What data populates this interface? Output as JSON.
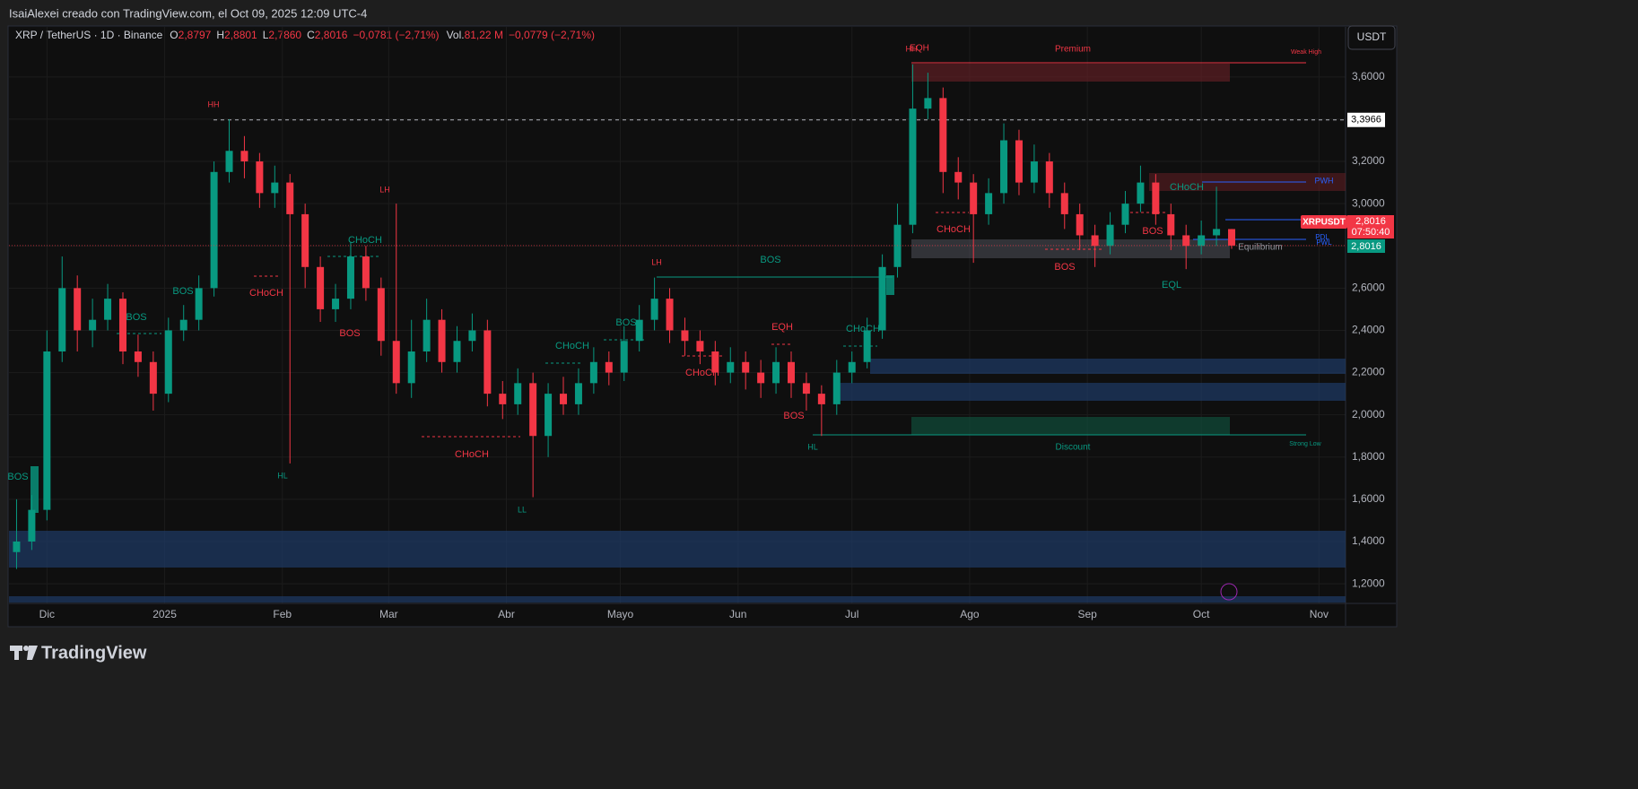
{
  "header": {
    "caption": "IsaiAlexei creado con TradingView.com, el Oct 09, 2025 12:09 UTC-4",
    "currency_button": "USDT",
    "brand": "TradingView"
  },
  "chart_data": {
    "type": "candlestick",
    "symbol": "XRP / TetherUS · 1D · Binance",
    "ohlc": [
      {
        "key": "O",
        "value": 2.8797,
        "label": "2,8797"
      },
      {
        "key": "H",
        "value": 2.8801,
        "label": "2,8801"
      },
      {
        "key": "L",
        "value": 2.786,
        "label": "2,7860"
      },
      {
        "key": "C",
        "value": 2.8016,
        "label": "2,8016"
      }
    ],
    "change": "−0,0781 (−2,71%)",
    "volume_key": "Vol.",
    "volume": "81,22 M",
    "volume_change": "−0,0779 (−2,71%)",
    "up_color": "#089981",
    "down_color": "#f23645",
    "grid": true,
    "x": [
      -8,
      -4,
      0,
      4,
      8,
      12,
      16,
      20,
      24,
      28,
      32,
      36,
      40,
      44,
      48,
      52,
      56,
      60,
      64,
      68,
      72,
      76,
      80,
      84,
      88,
      92,
      96,
      100,
      104,
      108,
      112,
      116,
      120,
      124,
      128,
      132,
      136,
      140,
      144,
      148,
      152,
      156,
      160,
      164,
      168,
      172,
      176,
      180,
      184,
      188,
      192,
      196,
      200,
      204,
      208,
      212,
      216,
      220,
      224,
      228,
      232,
      236,
      240,
      244,
      248,
      252,
      256,
      260,
      264,
      268,
      272,
      276,
      280,
      284,
      288,
      292,
      296,
      300,
      304,
      308,
      312
    ],
    "open": [
      1.35,
      1.4,
      1.55,
      2.3,
      2.6,
      2.4,
      2.45,
      2.55,
      2.3,
      2.25,
      2.1,
      2.4,
      2.45,
      2.6,
      3.15,
      3.25,
      3.2,
      3.05,
      3.1,
      2.95,
      2.7,
      2.5,
      2.55,
      2.75,
      2.6,
      2.35,
      2.15,
      2.3,
      2.45,
      2.25,
      2.35,
      2.4,
      2.1,
      2.05,
      2.15,
      1.9,
      2.1,
      2.05,
      2.15,
      2.25,
      2.2,
      2.35,
      2.45,
      2.55,
      2.4,
      2.35,
      2.3,
      2.2,
      2.25,
      2.2,
      2.15,
      2.25,
      2.15,
      2.1,
      2.05,
      2.2,
      2.25,
      2.4,
      2.7,
      2.9,
      3.45,
      3.5,
      3.15,
      3.1,
      2.95,
      3.05,
      3.3,
      3.1,
      3.2,
      3.05,
      2.95,
      2.85,
      2.8,
      2.9,
      3.0,
      3.1,
      2.95,
      2.85,
      2.8,
      2.85,
      2.8797
    ],
    "high": [
      1.6,
      1.62,
      2.4,
      2.75,
      2.66,
      2.55,
      2.62,
      2.58,
      2.38,
      2.3,
      2.46,
      2.52,
      2.66,
      3.2,
      3.4,
      3.32,
      3.24,
      3.18,
      3.14,
      3.0,
      2.75,
      2.62,
      2.82,
      2.8,
      2.65,
      3.0,
      2.45,
      2.55,
      2.5,
      2.42,
      2.48,
      2.45,
      2.16,
      2.22,
      2.2,
      2.15,
      2.18,
      2.22,
      2.32,
      2.3,
      2.42,
      2.52,
      2.65,
      2.6,
      2.46,
      2.4,
      2.35,
      2.32,
      2.3,
      2.26,
      2.32,
      2.3,
      2.2,
      2.14,
      2.26,
      2.3,
      2.46,
      2.76,
      3.0,
      3.66,
      3.62,
      3.55,
      3.22,
      3.14,
      3.12,
      3.38,
      3.35,
      3.28,
      3.24,
      3.1,
      3.0,
      2.9,
      2.96,
      3.06,
      3.18,
      3.14,
      3.0,
      2.9,
      2.92,
      3.08,
      2.8801
    ],
    "low": [
      1.27,
      1.36,
      1.5,
      2.25,
      2.3,
      2.32,
      2.4,
      2.24,
      2.18,
      2.02,
      2.06,
      2.35,
      2.4,
      2.56,
      3.1,
      3.12,
      2.98,
      2.98,
      1.77,
      2.6,
      2.44,
      2.44,
      2.5,
      2.54,
      2.28,
      2.1,
      2.08,
      2.25,
      2.2,
      2.2,
      2.3,
      2.04,
      1.98,
      2.0,
      1.61,
      1.8,
      2.0,
      2.0,
      2.1,
      2.14,
      2.16,
      2.3,
      2.4,
      2.34,
      2.28,
      2.24,
      2.14,
      2.15,
      2.12,
      2.08,
      2.1,
      2.08,
      2.02,
      1.9,
      2.0,
      2.15,
      2.22,
      2.36,
      2.65,
      2.86,
      3.4,
      3.05,
      3.02,
      2.72,
      2.9,
      3.0,
      3.04,
      3.05,
      2.98,
      2.88,
      2.78,
      2.7,
      2.76,
      2.86,
      2.96,
      2.9,
      2.78,
      2.69,
      2.76,
      2.8,
      2.786
    ],
    "close": [
      1.4,
      1.55,
      2.3,
      2.6,
      2.4,
      2.45,
      2.55,
      2.3,
      2.25,
      2.1,
      2.4,
      2.45,
      2.6,
      3.15,
      3.25,
      3.2,
      3.05,
      3.1,
      2.95,
      2.7,
      2.5,
      2.55,
      2.75,
      2.6,
      2.35,
      2.15,
      2.3,
      2.45,
      2.25,
      2.35,
      2.4,
      2.1,
      2.05,
      2.15,
      1.9,
      2.1,
      2.05,
      2.15,
      2.25,
      2.2,
      2.35,
      2.45,
      2.55,
      2.4,
      2.35,
      2.3,
      2.2,
      2.25,
      2.2,
      2.15,
      2.25,
      2.15,
      2.1,
      2.05,
      2.2,
      2.25,
      2.4,
      2.7,
      2.9,
      3.45,
      3.5,
      3.15,
      3.1,
      2.95,
      3.05,
      3.3,
      3.1,
      3.2,
      3.05,
      2.95,
      2.85,
      2.8,
      2.9,
      3.0,
      3.1,
      2.95,
      2.85,
      2.8,
      2.85,
      2.88,
      2.8016
    ],
    "xlim": [
      -10,
      342
    ],
    "xticks": [
      {
        "value": 0,
        "label": "Dic"
      },
      {
        "value": 31,
        "label": "2025"
      },
      {
        "value": 62,
        "label": "Feb"
      },
      {
        "value": 90,
        "label": "Mar"
      },
      {
        "value": 121,
        "label": "Abr"
      },
      {
        "value": 151,
        "label": "Mayo"
      },
      {
        "value": 182,
        "label": "Jun"
      },
      {
        "value": 212,
        "label": "Jul"
      },
      {
        "value": 243,
        "label": "Ago"
      },
      {
        "value": 274,
        "label": "Sep"
      },
      {
        "value": 304,
        "label": "Oct"
      },
      {
        "value": 335,
        "label": "Nov"
      }
    ],
    "ylim": [
      1.107,
      3.837
    ],
    "yticks": [
      {
        "value": 1.2,
        "label": "1,2000"
      },
      {
        "value": 1.4,
        "label": "1,4000"
      },
      {
        "value": 1.6,
        "label": "1,6000"
      },
      {
        "value": 1.8,
        "label": "1,8000"
      },
      {
        "value": 2.0,
        "label": "2,0000"
      },
      {
        "value": 2.2,
        "label": "2,2000"
      },
      {
        "value": 2.4,
        "label": "2,4000"
      },
      {
        "value": 2.6,
        "label": "2,6000"
      },
      {
        "value": 2.8,
        "label": "2,8000"
      },
      {
        "value": 3.0,
        "label": "3,0000"
      },
      {
        "value": 3.2,
        "label": "3,2000"
      },
      {
        "value": 3.4,
        "label": "3,4000"
      },
      {
        "value": 3.6,
        "label": "3,6000"
      }
    ],
    "level": {
      "value": 3.3966,
      "label": "3,3966"
    },
    "last_price": {
      "value": 2.8016,
      "label": "2,8016",
      "ticker": "XRPUSDT",
      "countdown": "07:50:40"
    },
    "annotations": [
      "HH",
      "LH",
      "LH",
      "EQH",
      "HH",
      "Premium",
      "Weak High",
      "BOS",
      "BOS",
      "BOS",
      "CHoCH",
      "CHoCH",
      "BOS",
      "HL",
      "CHoCH",
      "LL",
      "CHoCH",
      "BOS",
      "BOS",
      "CHoCH",
      "EQH",
      "BOS",
      "HL",
      "CHoCH",
      "CHoCH",
      "BOS",
      "BOS",
      "CHoCH",
      "EQL",
      "PWH",
      "PDL",
      "PWL",
      "Equilibrium",
      "Discount",
      "Strong Low"
    ]
  }
}
